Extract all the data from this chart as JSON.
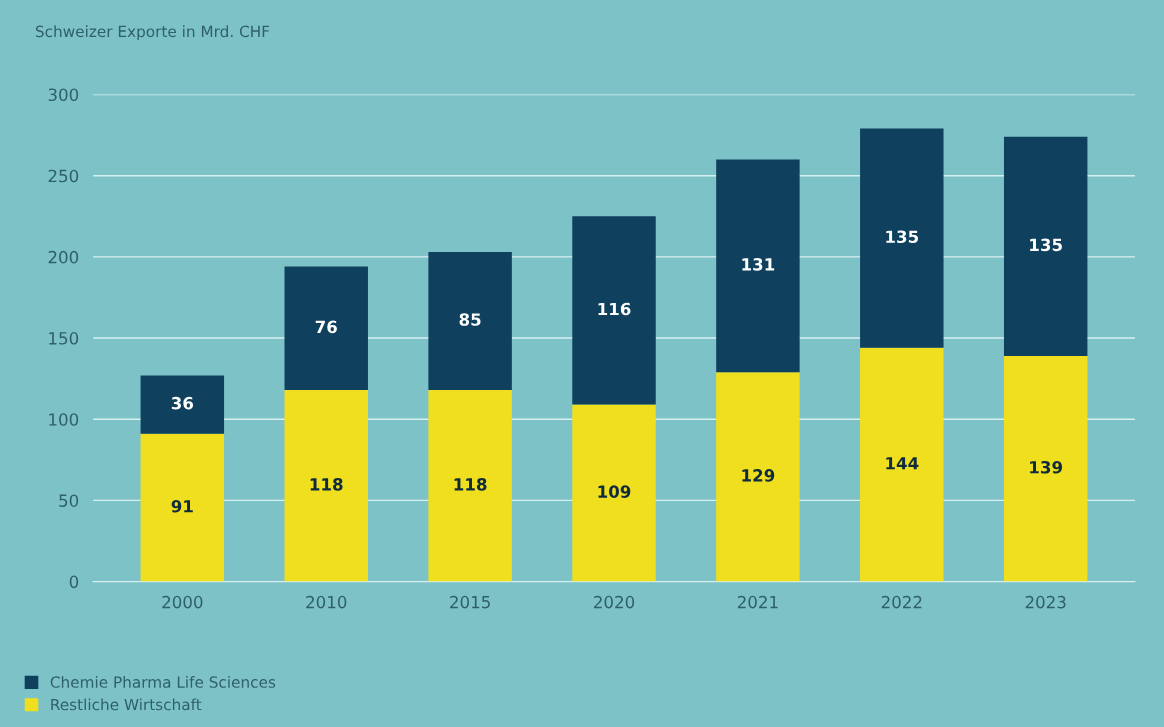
{
  "chart_data": {
    "type": "bar",
    "stacked": true,
    "ylabel": "Schweizer Exporte in Mrd. CHF",
    "categories": [
      "2000",
      "2010",
      "2015",
      "2020",
      "2021",
      "2022",
      "2023"
    ],
    "series": [
      {
        "name": "Restliche Wirtschaft",
        "color": "#f0df1f",
        "values": [
          91,
          118,
          118,
          109,
          129,
          144,
          139
        ]
      },
      {
        "name": "Chemie Pharma Life Sciences",
        "color": "#0f405e",
        "values": [
          36,
          76,
          85,
          116,
          131,
          135,
          135
        ]
      }
    ],
    "ylim": [
      0,
      300
    ],
    "yticks": [
      0,
      50,
      100,
      150,
      200,
      250,
      300
    ],
    "grid": "y",
    "legend": "bottom left",
    "data_labels": true
  }
}
